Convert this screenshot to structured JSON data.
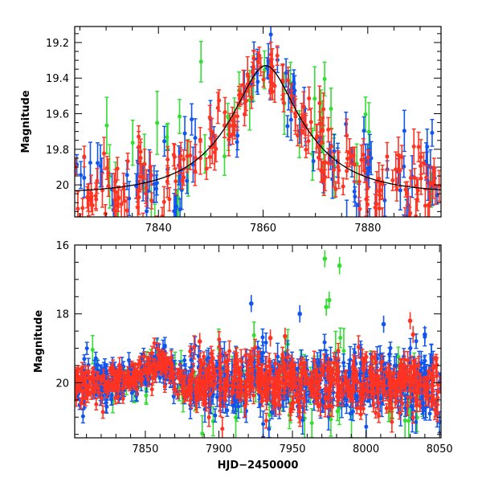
{
  "chart_data": [
    {
      "type": "scatter",
      "panel": "top",
      "xlabel": "",
      "ylabel": "Magnitude",
      "xlim": [
        7824,
        7894
      ],
      "ylim": [
        20.18,
        19.11
      ],
      "y_inverted": true,
      "x_ticks": [
        7840,
        7860,
        7880
      ],
      "y_ticks": [
        19.2,
        19.4,
        19.6,
        19.8,
        20
      ],
      "y_tick_labels": [
        "19.2",
        "19.4",
        "19.6",
        "19.8",
        "20"
      ],
      "x_tick_labels": [
        "7840",
        "7860",
        "7880"
      ],
      "model_curve": {
        "color": "#000000",
        "t0": 7860.5,
        "baseline": 20.05,
        "amplitude": 0.72,
        "tE": 14
      },
      "series": [
        {
          "color": "#ff3322",
          "x_range": [
            7824,
            7894
          ],
          "density": "high",
          "scatter": 0.11,
          "error_bar": 0.07
        },
        {
          "color": "#1155ee",
          "x_range": [
            7824,
            7894
          ],
          "density": "medium",
          "scatter": 0.14,
          "error_bar": 0.08
        },
        {
          "color": "#33dd33",
          "x_range": [
            7824,
            7894
          ],
          "density": "low",
          "scatter": 0.22,
          "error_bar": 0.12
        }
      ]
    },
    {
      "type": "scatter",
      "panel": "bottom",
      "xlabel": "HJD−2450000",
      "ylabel": "Magnitude",
      "xlim": [
        7802,
        8051
      ],
      "ylim": [
        21.6,
        16.0
      ],
      "y_inverted": true,
      "x_ticks": [
        7850,
        7900,
        7950,
        8000,
        8050
      ],
      "x_tick_labels": [
        "7850",
        "7900",
        "7950",
        "8000",
        "8050"
      ],
      "y_ticks": [
        16,
        18,
        20
      ],
      "y_tick_labels": [
        "16",
        "18",
        "20"
      ],
      "series": [
        {
          "color": "#ff3322",
          "x_range": [
            7802,
            8051
          ],
          "density": "high",
          "scatter": 0.25,
          "error_bar": 0.15
        },
        {
          "color": "#1155ee",
          "x_range": [
            7802,
            8051
          ],
          "density": "high",
          "scatter": 0.3,
          "error_bar": 0.18
        },
        {
          "color": "#33dd33",
          "x_range": [
            7810,
            8045
          ],
          "density": "low",
          "scatter": 0.45,
          "error_bar": 0.3
        }
      ],
      "outliers": [
        {
          "color": "#33dd33",
          "x": 7972,
          "y": 16.4
        },
        {
          "color": "#33dd33",
          "x": 7982,
          "y": 16.6
        },
        {
          "color": "#33dd33",
          "x": 7973,
          "y": 17.8
        },
        {
          "color": "#33dd33",
          "x": 7975,
          "y": 17.6
        },
        {
          "color": "#1155ee",
          "x": 7922,
          "y": 17.7
        },
        {
          "color": "#1155ee",
          "x": 7955,
          "y": 18.0
        },
        {
          "color": "#1155ee",
          "x": 8012,
          "y": 18.3
        },
        {
          "color": "#1155ee",
          "x": 8040,
          "y": 18.6
        },
        {
          "color": "#ff3322",
          "x": 7887,
          "y": 18.8
        },
        {
          "color": "#ff3322",
          "x": 7935,
          "y": 18.7
        },
        {
          "color": "#ff3322",
          "x": 7945,
          "y": 18.65
        },
        {
          "color": "#ff3322",
          "x": 8030,
          "y": 18.2
        },
        {
          "color": "#ff3322",
          "x": 8032,
          "y": 18.6
        }
      ]
    }
  ]
}
